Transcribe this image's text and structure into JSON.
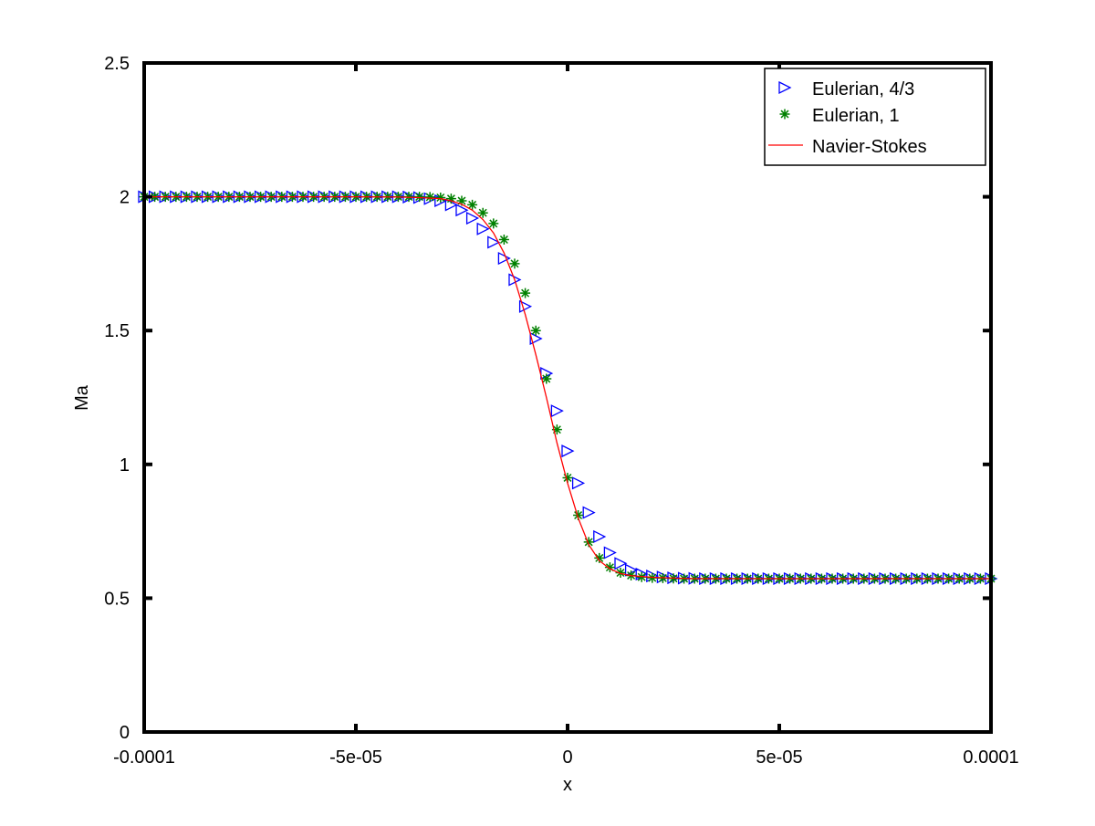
{
  "chart_data": {
    "type": "line",
    "title": "",
    "xlabel": "x",
    "ylabel": "Ma",
    "xlim": [
      -0.0001,
      0.0001
    ],
    "ylim": [
      0,
      2.5
    ],
    "x_ticks": [
      -0.0001,
      -5e-05,
      0,
      5e-05,
      0.0001
    ],
    "x_tick_labels": [
      "-0.0001",
      "-5e-05",
      "0",
      "5e-05",
      "0.0001"
    ],
    "y_ticks": [
      0,
      0.5,
      1,
      1.5,
      2,
      2.5
    ],
    "y_tick_labels": [
      "0",
      "0.5",
      "1",
      "1.5",
      "2",
      "2.5"
    ],
    "grid": false,
    "legend_position": "top-right",
    "series": [
      {
        "name": "Eulerian, 4/3",
        "marker": "triangle-right",
        "color": "#0000ff",
        "x": [
          -0.0001,
          -9.75e-05,
          -9.5e-05,
          -9.25e-05,
          -9e-05,
          -8.75e-05,
          -8.5e-05,
          -8.25e-05,
          -8e-05,
          -7.75e-05,
          -7.5e-05,
          -7.25e-05,
          -7e-05,
          -6.75e-05,
          -6.5e-05,
          -6.25e-05,
          -6e-05,
          -5.75e-05,
          -5.5e-05,
          -5.25e-05,
          -5e-05,
          -4.75e-05,
          -4.5e-05,
          -4.25e-05,
          -4e-05,
          -3.75e-05,
          -3.5e-05,
          -3.25e-05,
          -3e-05,
          -2.75e-05,
          -2.5e-05,
          -2.25e-05,
          -2e-05,
          -1.75e-05,
          -1.5e-05,
          -1.25e-05,
          -1e-05,
          -7.5e-06,
          -5e-06,
          -2.5e-06,
          0,
          2.5e-06,
          5e-06,
          7.5e-06,
          1e-05,
          1.25e-05,
          1.5e-05,
          1.75e-05,
          2e-05,
          2.25e-05,
          2.5e-05,
          2.75e-05,
          3e-05,
          3.25e-05,
          3.5e-05,
          3.75e-05,
          4e-05,
          4.25e-05,
          4.5e-05,
          4.75e-05,
          5e-05,
          5.25e-05,
          5.5e-05,
          5.75e-05,
          6e-05,
          6.25e-05,
          6.5e-05,
          6.75e-05,
          7e-05,
          7.25e-05,
          7.5e-05,
          7.75e-05,
          8e-05,
          8.25e-05,
          8.5e-05,
          8.75e-05,
          9e-05,
          9.25e-05,
          9.5e-05,
          9.75e-05,
          0.0001
        ],
        "y": [
          2.0,
          2.0,
          2.0,
          2.0,
          2.0,
          2.0,
          2.0,
          2.0,
          2.0,
          2.0,
          2.0,
          2.0,
          2.0,
          2.0,
          2.0,
          2.0,
          2.0,
          2.0,
          2.0,
          2.0,
          2.0,
          2.0,
          2.0,
          2.0,
          2.0,
          1.999,
          1.997,
          1.993,
          1.985,
          1.97,
          1.95,
          1.92,
          1.88,
          1.83,
          1.77,
          1.69,
          1.59,
          1.47,
          1.34,
          1.2,
          1.05,
          0.93,
          0.82,
          0.73,
          0.67,
          0.63,
          0.605,
          0.59,
          0.583,
          0.579,
          0.576,
          0.575,
          0.574,
          0.573,
          0.573,
          0.573,
          0.573,
          0.573,
          0.573,
          0.573,
          0.573,
          0.573,
          0.573,
          0.573,
          0.573,
          0.573,
          0.573,
          0.573,
          0.573,
          0.573,
          0.573,
          0.573,
          0.573,
          0.573,
          0.573,
          0.573,
          0.573,
          0.573,
          0.573,
          0.573,
          0.573
        ]
      },
      {
        "name": "Eulerian, 1",
        "marker": "asterisk",
        "color": "#008000",
        "x": [
          -0.0001,
          -9.75e-05,
          -9.5e-05,
          -9.25e-05,
          -9e-05,
          -8.75e-05,
          -8.5e-05,
          -8.25e-05,
          -8e-05,
          -7.75e-05,
          -7.5e-05,
          -7.25e-05,
          -7e-05,
          -6.75e-05,
          -6.5e-05,
          -6.25e-05,
          -6e-05,
          -5.75e-05,
          -5.5e-05,
          -5.25e-05,
          -5e-05,
          -4.75e-05,
          -4.5e-05,
          -4.25e-05,
          -4e-05,
          -3.75e-05,
          -3.5e-05,
          -3.25e-05,
          -3e-05,
          -2.75e-05,
          -2.5e-05,
          -2.25e-05,
          -2e-05,
          -1.75e-05,
          -1.5e-05,
          -1.25e-05,
          -1e-05,
          -7.5e-06,
          -5e-06,
          -2.5e-06,
          0,
          2.5e-06,
          5e-06,
          7.5e-06,
          1e-05,
          1.25e-05,
          1.5e-05,
          1.75e-05,
          2e-05,
          2.25e-05,
          2.5e-05,
          2.75e-05,
          3e-05,
          3.25e-05,
          3.5e-05,
          3.75e-05,
          4e-05,
          4.25e-05,
          4.5e-05,
          4.75e-05,
          5e-05,
          5.25e-05,
          5.5e-05,
          5.75e-05,
          6e-05,
          6.25e-05,
          6.5e-05,
          6.75e-05,
          7e-05,
          7.25e-05,
          7.5e-05,
          7.75e-05,
          8e-05,
          8.25e-05,
          8.5e-05,
          8.75e-05,
          9e-05,
          9.25e-05,
          9.5e-05,
          9.75e-05,
          0.0001
        ],
        "y": [
          2.0,
          2.0,
          2.0,
          2.0,
          2.0,
          2.0,
          2.0,
          2.0,
          2.0,
          2.0,
          2.0,
          2.0,
          2.0,
          2.0,
          2.0,
          2.0,
          2.0,
          2.0,
          2.0,
          2.0,
          2.0,
          2.0,
          2.0,
          2.0,
          2.0,
          2.0,
          2.0,
          1.999,
          1.997,
          1.993,
          1.985,
          1.97,
          1.94,
          1.9,
          1.84,
          1.75,
          1.64,
          1.5,
          1.32,
          1.13,
          0.95,
          0.81,
          0.71,
          0.65,
          0.615,
          0.595,
          0.585,
          0.579,
          0.576,
          0.575,
          0.574,
          0.573,
          0.573,
          0.573,
          0.573,
          0.573,
          0.573,
          0.573,
          0.573,
          0.573,
          0.573,
          0.573,
          0.573,
          0.573,
          0.573,
          0.573,
          0.573,
          0.573,
          0.573,
          0.573,
          0.573,
          0.573,
          0.573,
          0.573,
          0.573,
          0.573,
          0.573,
          0.573,
          0.573,
          0.573,
          0.573
        ]
      },
      {
        "name": "Navier-Stokes",
        "marker": "line",
        "color": "#ff0000",
        "x": [
          -0.0001,
          -5e-05,
          -4e-05,
          -3.5e-05,
          -3e-05,
          -2.75e-05,
          -2.5e-05,
          -2.25e-05,
          -2e-05,
          -1.75e-05,
          -1.5e-05,
          -1.25e-05,
          -1e-05,
          -7.5e-06,
          -5e-06,
          -2.5e-06,
          0,
          2.5e-06,
          5e-06,
          7.5e-06,
          1e-05,
          1.25e-05,
          1.5e-05,
          2e-05,
          2.5e-05,
          3e-05,
          0.0001
        ],
        "y": [
          2.0,
          2.0,
          1.999,
          1.997,
          1.993,
          1.985,
          1.972,
          1.95,
          1.915,
          1.865,
          1.79,
          1.69,
          1.56,
          1.41,
          1.25,
          1.08,
          0.93,
          0.8,
          0.7,
          0.64,
          0.61,
          0.592,
          0.584,
          0.578,
          0.575,
          0.573,
          0.573
        ]
      }
    ]
  }
}
